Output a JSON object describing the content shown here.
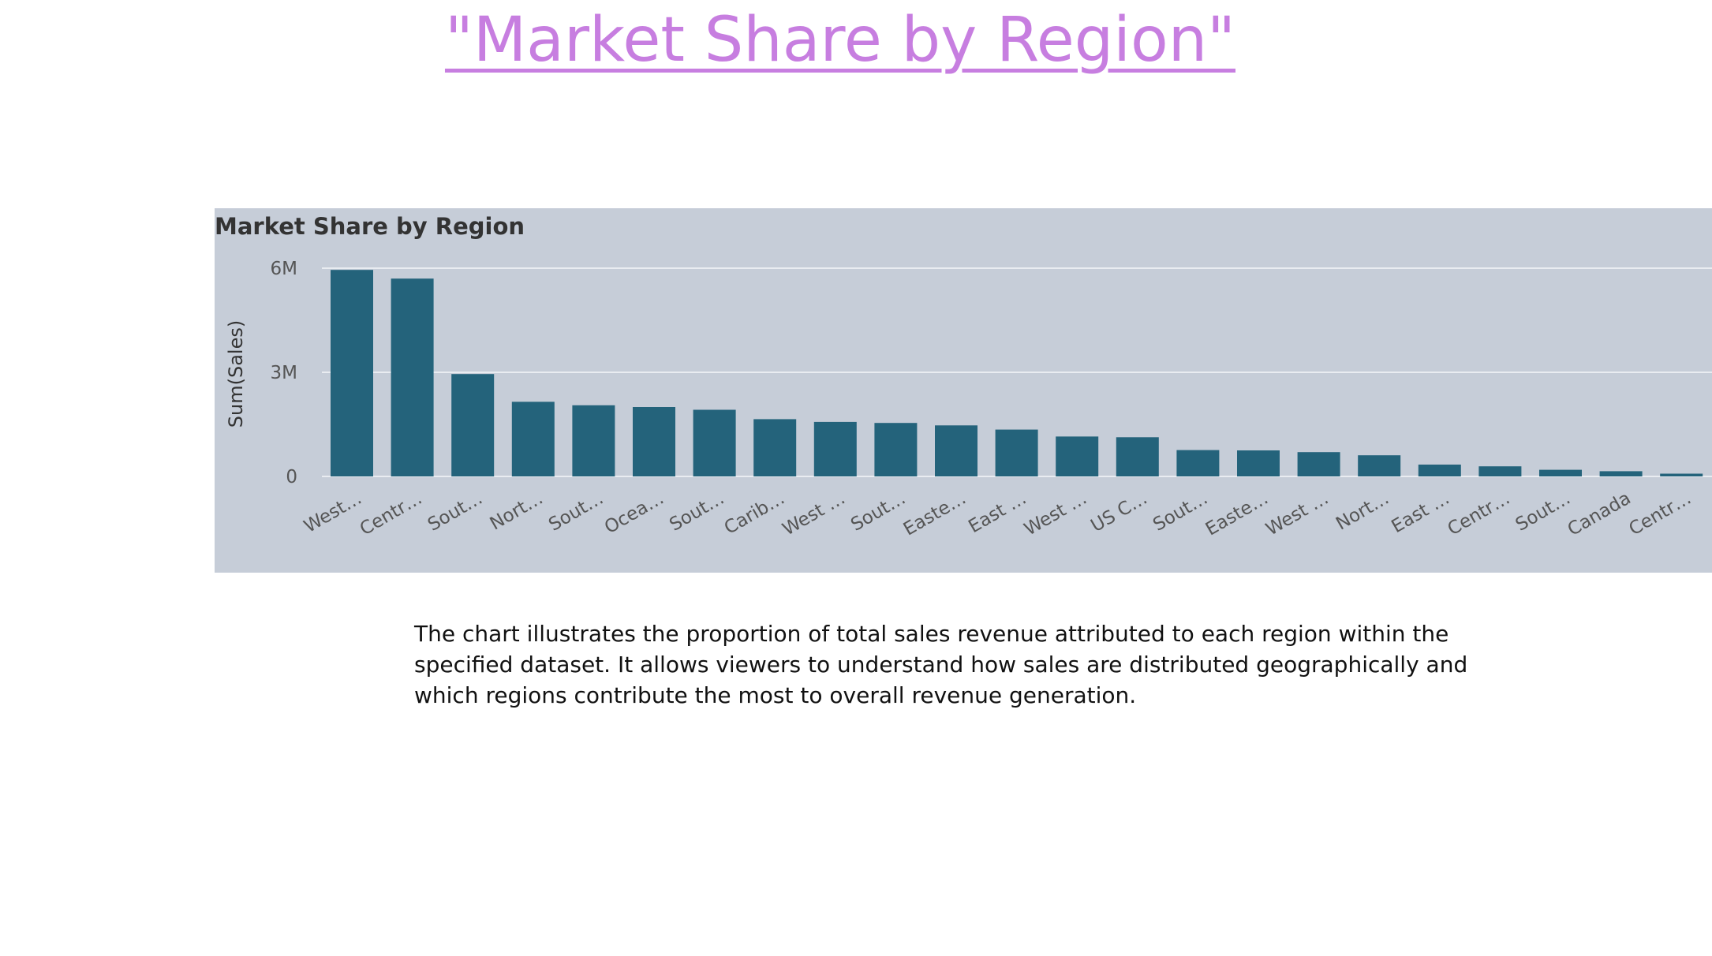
{
  "page": {
    "title": "\"Market Share by Region\"",
    "description": "The chart illustrates the proportion of total sales revenue attributed to each region within the specified dataset. It allows viewers to understand how sales are distributed geographically and which regions contribute the most to overall revenue generation."
  },
  "colors": {
    "title_link": "#c77ee0",
    "panel_background": "#c6cdd8",
    "bar": "#24637b",
    "gridline": "#e9ecf1",
    "text_dark": "#333333",
    "text_muted": "#555555"
  },
  "chart_data": {
    "type": "bar",
    "title": "Market Share by Region",
    "xlabel": "",
    "ylabel": "Sum(Sales)",
    "ylim": [
      0,
      6500000
    ],
    "yticks": [
      0,
      3000000,
      6000000
    ],
    "ytick_labels": [
      "0",
      "3M",
      "6M"
    ],
    "grid": true,
    "categories": [
      "West…",
      "Centr…",
      "Sout…",
      "Nort…",
      "Sout…",
      "Ocea…",
      "Sout…",
      "Carib…",
      "West …",
      "Sout…",
      "Easte…",
      "East …",
      "West …",
      "US C…",
      "Sout…",
      "Easte…",
      "West …",
      "Nort…",
      "East …",
      "Centr…",
      "Sout…",
      "Canada",
      "Centr…"
    ],
    "values": [
      5950000,
      5700000,
      2950000,
      2150000,
      2050000,
      2000000,
      1920000,
      1650000,
      1570000,
      1540000,
      1470000,
      1350000,
      1150000,
      1130000,
      760000,
      750000,
      700000,
      610000,
      340000,
      290000,
      190000,
      150000,
      80000
    ]
  }
}
